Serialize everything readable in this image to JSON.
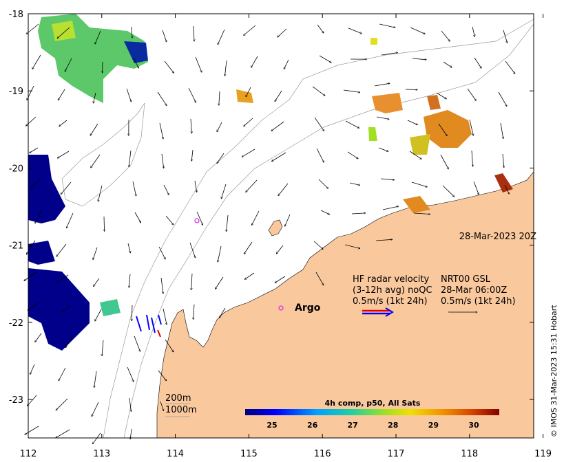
{
  "map": {
    "x_ticks": [
      "112",
      "113",
      "114",
      "115",
      "116",
      "117",
      "118",
      "119"
    ],
    "y_ticks": [
      "-18",
      "-19",
      "-20",
      "-21",
      "-22",
      "-23"
    ],
    "timestamp": "28-Mar-2023 20Z",
    "argo_label": "Argo",
    "legend": {
      "line1_left": "HF radar velocity",
      "line1_right": "NRT00 GSL",
      "line2_left": "(3-12h avg) noQC",
      "line2_right": "28-Mar 06:00Z",
      "line3_left": "0.5m/s (1kt 24h)",
      "line3_right": "0.5m/s (1kt 24h)"
    },
    "contour_200": "200m",
    "contour_1000": "1000m",
    "colorbar": {
      "title": "4h comp, p50, All Sats",
      "ticks": [
        "25",
        "26",
        "27",
        "28",
        "29",
        "30"
      ]
    },
    "credit": "© IMOS 31-Mar-2023 15:31 Hobart",
    "colors": {
      "land": "#f9c89d",
      "argo": "#e020e0",
      "sst_cold": "#00008b",
      "sst_warm": "#8b1a00",
      "radar_red": "#e00000",
      "radar_blue": "#0000ff"
    }
  }
}
